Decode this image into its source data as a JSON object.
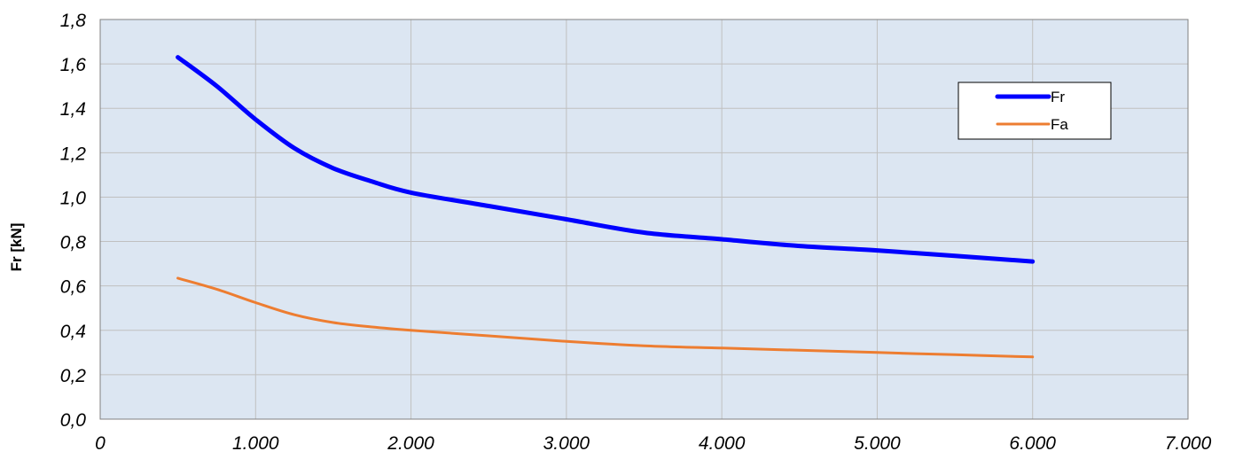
{
  "chart_data": {
    "type": "line",
    "title": "",
    "xlabel": "",
    "ylabel": "Fr [kN]",
    "xlim": [
      0,
      7000
    ],
    "ylim": [
      0,
      1.8
    ],
    "x_ticks": [
      0,
      1000,
      2000,
      3000,
      4000,
      5000,
      6000,
      7000
    ],
    "x_tick_labels": [
      "0",
      "1.000",
      "2.000",
      "3.000",
      "4.000",
      "5.000",
      "6.000",
      "7.000"
    ],
    "y_ticks": [
      0,
      0.2,
      0.4,
      0.6,
      0.8,
      1.0,
      1.2,
      1.4,
      1.6,
      1.8
    ],
    "y_tick_labels": [
      "0,0",
      "0,2",
      "0,4",
      "0,6",
      "0,8",
      "1,0",
      "1,2",
      "1,4",
      "1,6",
      "1,8"
    ],
    "grid": true,
    "plot_background": "#dce6f2",
    "legend_position": "top-right",
    "series": [
      {
        "name": "Fr",
        "color": "#0000ff",
        "x": [
          500,
          750,
          1000,
          1250,
          1500,
          1750,
          2000,
          2500,
          3000,
          3500,
          4000,
          4500,
          5000,
          5500,
          6000
        ],
        "values": [
          1.63,
          1.5,
          1.35,
          1.22,
          1.13,
          1.07,
          1.02,
          0.96,
          0.9,
          0.84,
          0.81,
          0.78,
          0.76,
          0.735,
          0.71
        ]
      },
      {
        "name": "Fa",
        "color": "#ed7d31",
        "x": [
          500,
          750,
          1000,
          1250,
          1500,
          1750,
          2000,
          2500,
          3000,
          3500,
          4000,
          4500,
          5000,
          5500,
          6000
        ],
        "values": [
          0.635,
          0.585,
          0.525,
          0.47,
          0.435,
          0.415,
          0.4,
          0.375,
          0.35,
          0.33,
          0.32,
          0.31,
          0.3,
          0.29,
          0.28
        ]
      }
    ]
  }
}
